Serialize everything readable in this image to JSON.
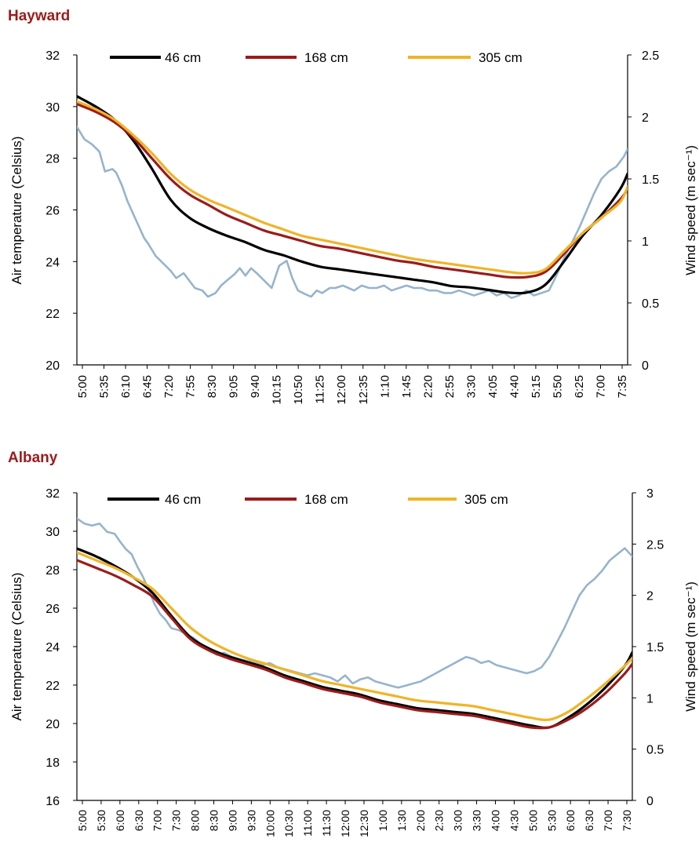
{
  "chart_data": [
    {
      "type": "line",
      "title": "Hayward",
      "ylabel": "Air temperature (Celsius)",
      "y2label": "Wind speed (m sec⁻¹)",
      "ylim": [
        20,
        32
      ],
      "y2lim": [
        0,
        2.5
      ],
      "y_ticks": [
        "20",
        "22",
        "24",
        "26",
        "28",
        "30",
        "32"
      ],
      "y2_ticks": [
        "0",
        "0.5",
        "1",
        "1.5",
        "2",
        "2.5"
      ],
      "x_ticks": [
        "5:00",
        "5:35",
        "6:10",
        "6:45",
        "7:20",
        "7:55",
        "8:30",
        "9:05",
        "9:40",
        "10:15",
        "10:50",
        "11:25",
        "12:00",
        "12:35",
        "1:10",
        "1:45",
        "2:20",
        "2:55",
        "3:30",
        "4:05",
        "4:40",
        "5:15",
        "5:50",
        "6:25",
        "7:00",
        "7:35"
      ],
      "x_span": [
        0,
        29.4
      ],
      "legend_position": "top",
      "grid": false,
      "series": [
        {
          "name": "46 cm",
          "color": "#000000",
          "axis": "left",
          "smooth": true,
          "x": [
            0,
            1,
            2,
            3,
            4,
            5,
            6,
            7,
            8,
            9,
            10,
            11,
            12,
            13,
            14,
            15,
            16,
            17,
            18,
            19,
            20,
            21,
            22,
            23,
            24,
            25,
            26,
            27,
            28,
            29,
            29.4
          ],
          "values": [
            30.4,
            30.0,
            29.5,
            28.7,
            27.6,
            26.4,
            25.7,
            25.3,
            25.0,
            24.75,
            24.45,
            24.25,
            24.0,
            23.8,
            23.7,
            23.6,
            23.5,
            23.4,
            23.3,
            23.2,
            23.05,
            23.0,
            22.9,
            22.8,
            22.8,
            23.1,
            24.0,
            25.0,
            25.8,
            26.8,
            27.4
          ]
        },
        {
          "name": "168 cm",
          "color": "#9b1b1b",
          "axis": "left",
          "smooth": true,
          "x": [
            0,
            1,
            2,
            3,
            4,
            5,
            6,
            7,
            8,
            9,
            10,
            11,
            12,
            13,
            14,
            15,
            16,
            17,
            18,
            19,
            20,
            21,
            22,
            23,
            24,
            25,
            26,
            27,
            28,
            29,
            29.4
          ],
          "values": [
            30.1,
            29.8,
            29.4,
            28.8,
            28.0,
            27.2,
            26.6,
            26.2,
            25.8,
            25.5,
            25.2,
            25.0,
            24.8,
            24.6,
            24.5,
            24.35,
            24.2,
            24.05,
            23.95,
            23.8,
            23.7,
            23.6,
            23.5,
            23.4,
            23.4,
            23.6,
            24.3,
            25.1,
            25.7,
            26.4,
            26.8
          ]
        },
        {
          "name": "305 cm",
          "color": "#f0b428",
          "axis": "left",
          "smooth": true,
          "x": [
            0,
            1,
            2,
            3,
            4,
            5,
            6,
            7,
            8,
            9,
            10,
            11,
            12,
            13,
            14,
            15,
            16,
            17,
            18,
            19,
            20,
            21,
            22,
            23,
            24,
            25,
            26,
            27,
            28,
            29,
            29.4
          ],
          "values": [
            30.2,
            29.9,
            29.5,
            28.9,
            28.2,
            27.4,
            26.8,
            26.4,
            26.1,
            25.8,
            25.5,
            25.25,
            25.0,
            24.85,
            24.7,
            24.55,
            24.4,
            24.25,
            24.1,
            24.0,
            23.9,
            23.8,
            23.7,
            23.6,
            23.55,
            23.7,
            24.4,
            25.1,
            25.7,
            26.3,
            26.9
          ]
        },
        {
          "name": "",
          "color": "#96b4cc",
          "axis": "right",
          "smooth": false,
          "x": [
            0,
            0.4,
            0.8,
            1.2,
            1.5,
            1.9,
            2.1,
            2.4,
            2.7,
            3.0,
            3.3,
            3.6,
            3.8,
            4.2,
            4.6,
            5.0,
            5.3,
            5.7,
            6.0,
            6.3,
            6.7,
            7.0,
            7.4,
            7.7,
            8.0,
            8.4,
            8.7,
            9.0,
            9.3,
            9.6,
            10.0,
            10.4,
            10.8,
            11.2,
            11.5,
            11.8,
            12.2,
            12.5,
            12.8,
            13.1,
            13.5,
            13.8,
            14.2,
            14.5,
            14.8,
            15.2,
            15.6,
            16.0,
            16.4,
            16.8,
            17.2,
            17.6,
            18.0,
            18.4,
            18.8,
            19.2,
            19.6,
            20.0,
            20.4,
            20.8,
            21.2,
            21.6,
            22.0,
            22.4,
            22.8,
            23.2,
            23.6,
            24.0,
            24.4,
            24.8,
            25.2,
            25.6,
            26.0,
            26.4,
            26.8,
            27.2,
            27.6,
            28.0,
            28.4,
            28.8,
            29.2,
            29.4
          ],
          "values": [
            1.92,
            1.82,
            1.78,
            1.72,
            1.56,
            1.58,
            1.55,
            1.45,
            1.32,
            1.22,
            1.12,
            1.02,
            0.98,
            0.88,
            0.82,
            0.76,
            0.7,
            0.74,
            0.68,
            0.62,
            0.6,
            0.55,
            0.58,
            0.64,
            0.68,
            0.73,
            0.78,
            0.72,
            0.78,
            0.74,
            0.68,
            0.62,
            0.8,
            0.84,
            0.7,
            0.6,
            0.57,
            0.55,
            0.6,
            0.58,
            0.62,
            0.62,
            0.64,
            0.62,
            0.6,
            0.64,
            0.62,
            0.62,
            0.64,
            0.6,
            0.62,
            0.64,
            0.62,
            0.62,
            0.6,
            0.6,
            0.58,
            0.58,
            0.6,
            0.58,
            0.56,
            0.58,
            0.6,
            0.56,
            0.58,
            0.54,
            0.56,
            0.6,
            0.56,
            0.58,
            0.6,
            0.72,
            0.86,
            0.98,
            1.1,
            1.24,
            1.38,
            1.5,
            1.56,
            1.6,
            1.68,
            1.74
          ]
        }
      ]
    },
    {
      "type": "line",
      "title": "Albany",
      "ylabel": "Air temperature (Celsius)",
      "y2label": "Wind speed (m sec⁻¹)",
      "ylim": [
        16,
        32
      ],
      "y2lim": [
        0,
        3
      ],
      "y_ticks": [
        "16",
        "18",
        "20",
        "22",
        "24",
        "26",
        "28",
        "30",
        "32"
      ],
      "y2_ticks": [
        "0",
        "0.5",
        "1",
        "1.5",
        "2",
        "2.5",
        "3"
      ],
      "x_ticks": [
        "5:00",
        "5:30",
        "6:00",
        "6:30",
        "7:00",
        "7:30",
        "8:00",
        "8:30",
        "9:00",
        "9:30",
        "10:00",
        "10:30",
        "11:00",
        "11:30",
        "12:00",
        "12:30",
        "1:00",
        "1:30",
        "2:00",
        "2:30",
        "3:00",
        "3:30",
        "4:00",
        "4:30",
        "5:00",
        "5:30",
        "6:00",
        "6:30",
        "7:00",
        "7:30"
      ],
      "x_span": [
        0,
        29.4
      ],
      "legend_position": "top",
      "grid": false,
      "series": [
        {
          "name": "46 cm",
          "color": "#000000",
          "axis": "left",
          "smooth": true,
          "x": [
            0,
            1,
            2,
            3,
            4,
            5,
            6,
            7,
            8,
            9,
            10,
            11,
            12,
            13,
            14,
            15,
            16,
            17,
            18,
            19,
            20,
            21,
            22,
            23,
            24,
            25,
            26,
            27,
            28,
            29,
            29.4
          ],
          "values": [
            29.1,
            28.7,
            28.2,
            27.6,
            26.8,
            25.6,
            24.5,
            23.9,
            23.5,
            23.2,
            22.9,
            22.5,
            22.2,
            21.9,
            21.7,
            21.5,
            21.2,
            21.0,
            20.8,
            20.7,
            20.6,
            20.5,
            20.3,
            20.1,
            19.9,
            19.8,
            20.3,
            21.0,
            21.9,
            23.0,
            23.7
          ]
        },
        {
          "name": "168 cm",
          "color": "#9b1b1b",
          "axis": "left",
          "smooth": true,
          "x": [
            0,
            1,
            2,
            3,
            4,
            5,
            6,
            7,
            8,
            9,
            10,
            11,
            12,
            13,
            14,
            15,
            16,
            17,
            18,
            19,
            20,
            21,
            22,
            23,
            24,
            25,
            26,
            27,
            28,
            29,
            29.4
          ],
          "values": [
            28.5,
            28.1,
            27.7,
            27.2,
            26.6,
            25.5,
            24.4,
            23.8,
            23.4,
            23.1,
            22.8,
            22.4,
            22.1,
            21.8,
            21.6,
            21.4,
            21.1,
            20.9,
            20.7,
            20.6,
            20.5,
            20.4,
            20.2,
            20.0,
            19.8,
            19.8,
            20.2,
            20.8,
            21.6,
            22.6,
            23.1
          ]
        },
        {
          "name": "305 cm",
          "color": "#f0b428",
          "axis": "left",
          "smooth": true,
          "x": [
            0,
            1,
            2,
            3,
            4,
            5,
            6,
            7,
            8,
            9,
            10,
            11,
            12,
            13,
            14,
            15,
            16,
            17,
            18,
            19,
            20,
            21,
            22,
            23,
            24,
            25,
            26,
            27,
            28,
            29,
            29.4
          ],
          "values": [
            28.9,
            28.5,
            28.1,
            27.6,
            27.0,
            26.0,
            25.0,
            24.3,
            23.8,
            23.4,
            23.1,
            22.8,
            22.5,
            22.2,
            22.0,
            21.8,
            21.6,
            21.4,
            21.2,
            21.1,
            21.0,
            20.9,
            20.7,
            20.5,
            20.3,
            20.2,
            20.6,
            21.3,
            22.1,
            23.0,
            23.4
          ]
        },
        {
          "name": "",
          "color": "#96b4cc",
          "axis": "right",
          "smooth": false,
          "x": [
            0,
            0.4,
            0.8,
            1.2,
            1.6,
            2.0,
            2.3,
            2.6,
            2.9,
            3.2,
            3.5,
            3.8,
            4.1,
            4.4,
            4.7,
            5.0,
            5.4,
            5.8,
            6.2,
            6.6,
            7.0,
            7.4,
            7.8,
            8.2,
            8.6,
            9.0,
            9.4,
            9.8,
            10.2,
            10.6,
            11.0,
            11.4,
            11.8,
            12.2,
            12.6,
            13.0,
            13.4,
            13.8,
            14.2,
            14.6,
            15.0,
            15.4,
            15.8,
            16.2,
            16.6,
            17.0,
            17.4,
            17.8,
            18.2,
            18.6,
            19.0,
            19.4,
            19.8,
            20.2,
            20.6,
            21.0,
            21.4,
            21.8,
            22.2,
            22.6,
            23.0,
            23.4,
            23.8,
            24.2,
            24.6,
            25.0,
            25.4,
            25.8,
            26.2,
            26.6,
            27.0,
            27.4,
            27.8,
            28.2,
            28.6,
            29.0,
            29.4
          ],
          "values": [
            2.75,
            2.7,
            2.68,
            2.7,
            2.62,
            2.6,
            2.52,
            2.45,
            2.4,
            2.28,
            2.18,
            2.05,
            1.92,
            1.82,
            1.76,
            1.68,
            1.66,
            1.62,
            1.58,
            1.52,
            1.48,
            1.42,
            1.44,
            1.4,
            1.38,
            1.36,
            1.35,
            1.32,
            1.34,
            1.3,
            1.28,
            1.26,
            1.24,
            1.22,
            1.24,
            1.22,
            1.2,
            1.16,
            1.22,
            1.14,
            1.18,
            1.2,
            1.16,
            1.14,
            1.12,
            1.1,
            1.12,
            1.14,
            1.16,
            1.2,
            1.24,
            1.28,
            1.32,
            1.36,
            1.4,
            1.38,
            1.34,
            1.36,
            1.32,
            1.3,
            1.28,
            1.26,
            1.24,
            1.26,
            1.3,
            1.4,
            1.54,
            1.68,
            1.84,
            2.0,
            2.1,
            2.16,
            2.24,
            2.34,
            2.4,
            2.46,
            2.38
          ]
        }
      ]
    }
  ]
}
